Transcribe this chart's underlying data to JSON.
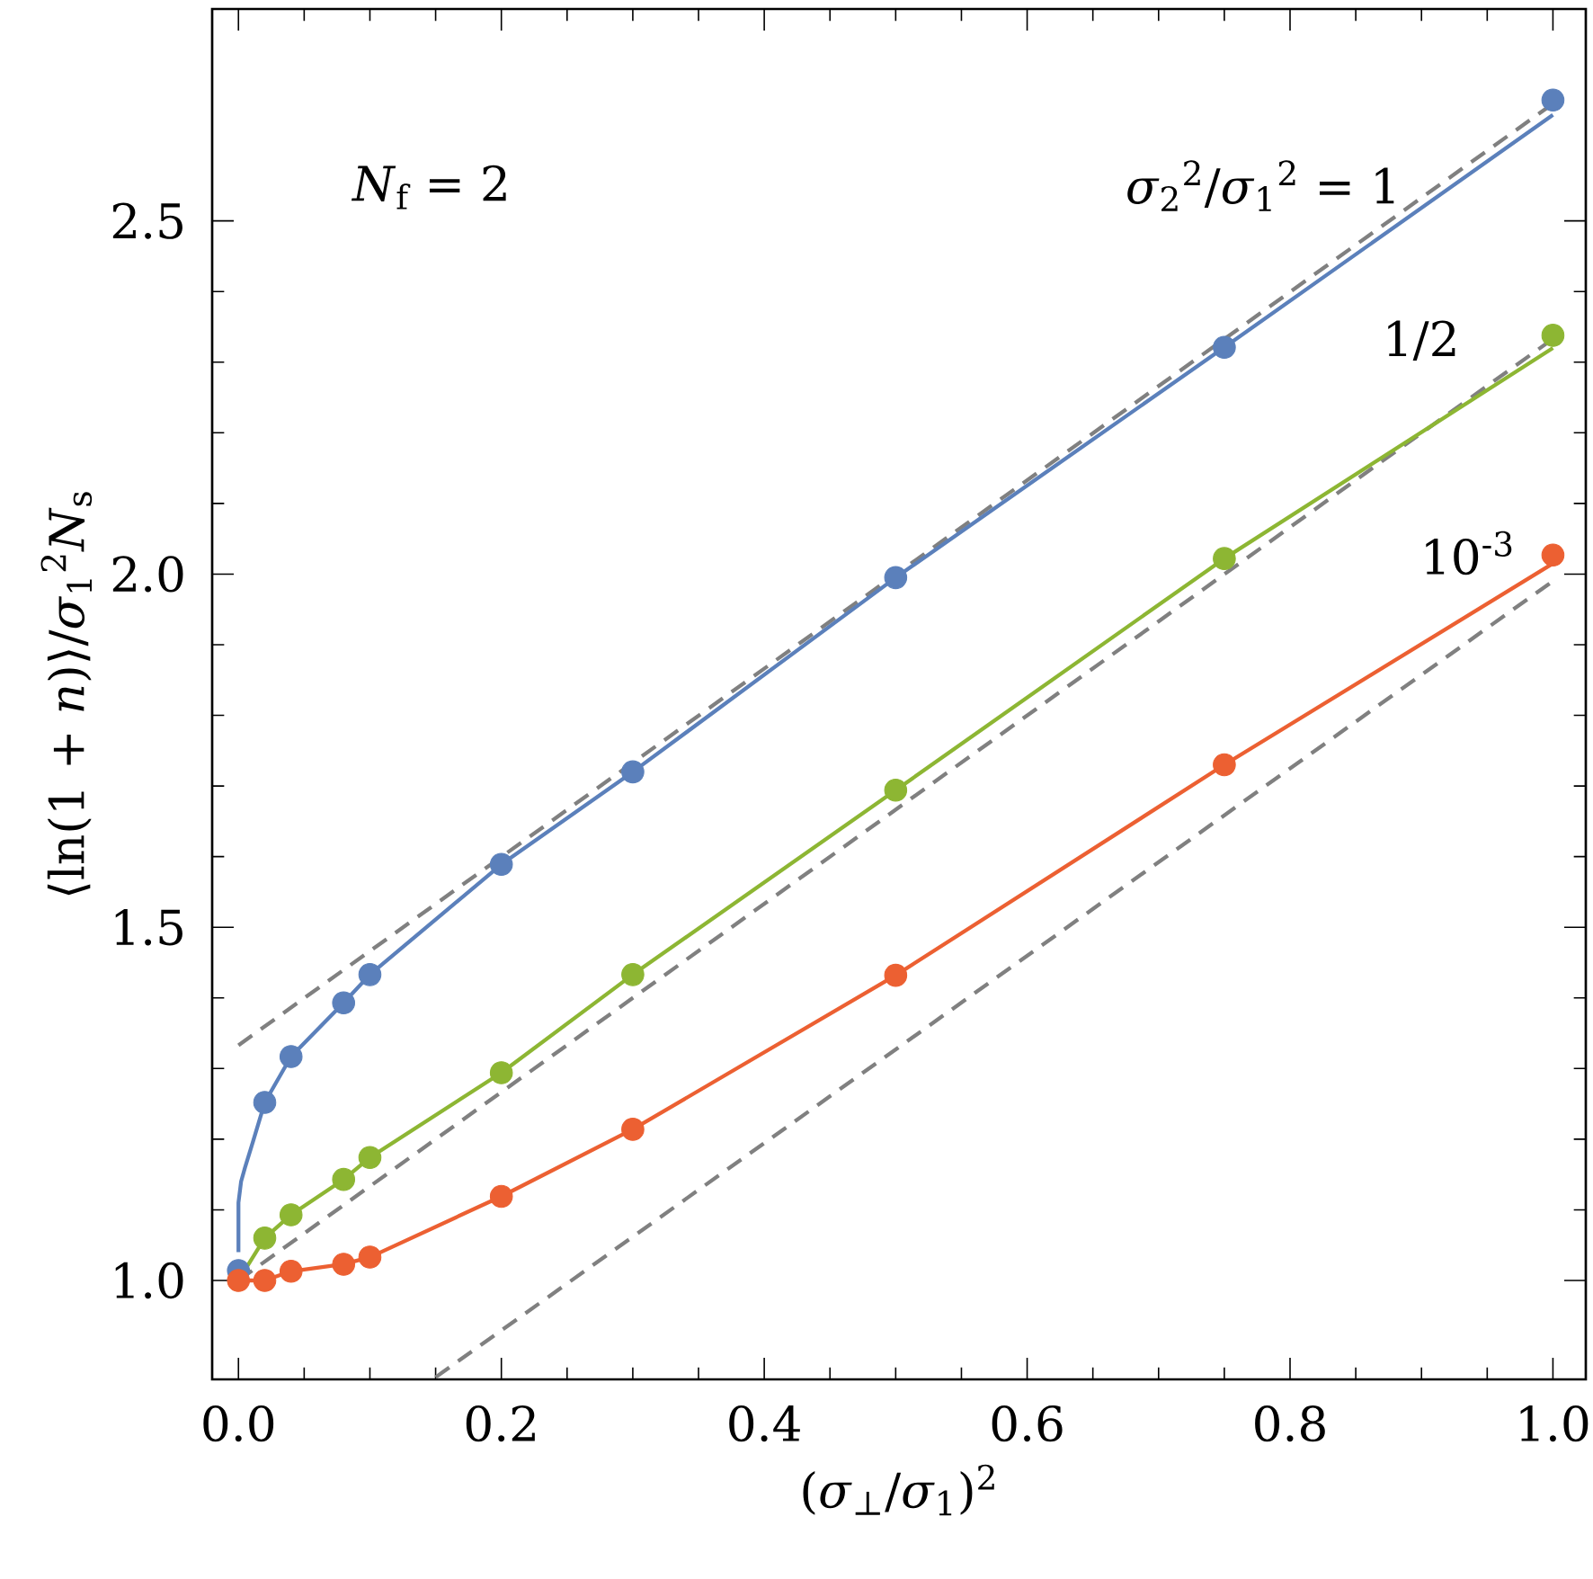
{
  "chart_data": {
    "type": "line",
    "xlabel": "(*σ*$_{⊥}$/*σ*$_{1}$)$^{2}$",
    "ylabel": "⟨ln(1 + *n*)⟩/*σ*$_{1}$$^{2}$*N*$_{s}$",
    "xlim": [
      -0.02,
      1.025
    ],
    "ylim": [
      0.86,
      2.8
    ],
    "xticks": [
      {
        "value": 0,
        "label": "0.0"
      },
      {
        "value": 0.2,
        "label": "0.2"
      },
      {
        "value": 0.4,
        "label": "0.4"
      },
      {
        "value": 0.6,
        "label": "0.6"
      },
      {
        "value": 0.8,
        "label": "0.8"
      },
      {
        "value": 1,
        "label": "1.0"
      }
    ],
    "yticks": [
      {
        "value": 1,
        "label": "1.0"
      },
      {
        "value": 1.5,
        "label": "1.5"
      },
      {
        "value": 2,
        "label": "2.0"
      },
      {
        "value": 2.5,
        "label": "2.5"
      }
    ],
    "grid": false,
    "series": [
      {
        "type": "line",
        "line_style": "dashed",
        "color": "#808080",
        "x": [
          0,
          1
        ],
        "values": [
          1.333,
          2.666
        ]
      },
      {
        "type": "line",
        "line_style": "dashed",
        "color": "#808080",
        "x": [
          0,
          1
        ],
        "values": [
          1.0,
          2.333
        ]
      },
      {
        "type": "line",
        "line_style": "dashed",
        "color": "#808080",
        "x": [
          0.15,
          1
        ],
        "values": [
          0.863,
          1.99
        ]
      },
      {
        "color": "#5b80bb",
        "x": [
          0,
          0,
          0.002,
          0.005,
          0.01,
          0.02,
          0.04,
          0.08,
          0.1,
          0.2,
          0.3,
          0.5,
          0.75,
          1
        ],
        "values": [
          1.04,
          1.11,
          1.14,
          1.16,
          1.19,
          1.252,
          1.317,
          1.393,
          1.433,
          1.589,
          1.72,
          1.995,
          2.321,
          2.65
        ]
      },
      {
        "color": "#8db633",
        "x": [
          0,
          0.02,
          0.04,
          0.08,
          0.1,
          0.2,
          0.3,
          0.5,
          0.75,
          1
        ],
        "values": [
          1.0,
          1.06,
          1.093,
          1.143,
          1.174,
          1.294,
          1.433,
          1.694,
          2.022,
          2.32
        ]
      },
      {
        "color": "#ec6032",
        "x": [
          0,
          0.02,
          0.04,
          0.08,
          0.1,
          0.2,
          0.3,
          0.5,
          0.75,
          1
        ],
        "values": [
          1.0,
          1.0,
          1.013,
          1.023,
          1.033,
          1.119,
          1.214,
          1.432,
          1.73,
          2.015
        ]
      },
      {
        "type": "scatter",
        "marker": "circle",
        "color": "#5b80bb",
        "x": [
          0,
          0.02,
          0.04,
          0.08,
          0.1,
          0.2,
          0.3,
          0.5,
          0.75,
          1
        ],
        "values": [
          1.014,
          1.252,
          1.317,
          1.393,
          1.433,
          1.589,
          1.72,
          1.995,
          2.321,
          2.671
        ]
      },
      {
        "type": "scatter",
        "marker": "circle",
        "color": "#8db633",
        "x": [
          0.02,
          0.04,
          0.08,
          0.1,
          0.2,
          0.3,
          0.5,
          0.75,
          1
        ],
        "values": [
          1.06,
          1.093,
          1.143,
          1.174,
          1.294,
          1.433,
          1.694,
          2.022,
          2.338
        ]
      },
      {
        "type": "scatter",
        "marker": "circle",
        "color": "#ec6032",
        "x": [
          0,
          0.02,
          0.04,
          0.08,
          0.1,
          0.2,
          0.3,
          0.5,
          0.75,
          1
        ],
        "values": [
          1.0,
          1.0,
          1.013,
          1.023,
          1.033,
          1.119,
          1.214,
          1.432,
          1.73,
          2.027
        ]
      }
    ],
    "annotations": [
      "*N*$_{f}$ = 2",
      "*σ*$_{2}$$^{2}$/*σ*$_{1}$$^{2}$ = 1",
      "1/2",
      "10$^{-3}$"
    ]
  }
}
